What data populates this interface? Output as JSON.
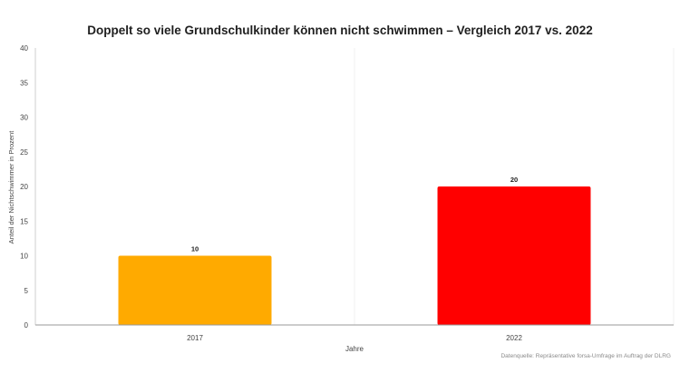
{
  "chart_data": {
    "type": "bar",
    "title": "Doppelt so viele Grundschulkinder können nicht schwimmen – Vergleich 2017 vs. 2022",
    "xlabel": "Jahre",
    "ylabel": "Anteil der Nichtschwimmer in Prozent",
    "categories": [
      "2017",
      "2022"
    ],
    "values": [
      10,
      20
    ],
    "data_labels": [
      "10",
      "20"
    ],
    "bar_colors": [
      "#ffaa00",
      "#ff0000"
    ],
    "ylim": [
      0,
      40
    ],
    "yticks": [
      "0",
      "5",
      "10",
      "15",
      "20",
      "25",
      "30",
      "35",
      "40"
    ],
    "grid": "vertical separators only",
    "legend": "none",
    "source": "Datenquelle: Repräsentative forsa-Umfrage im Auftrag der DLRG"
  }
}
